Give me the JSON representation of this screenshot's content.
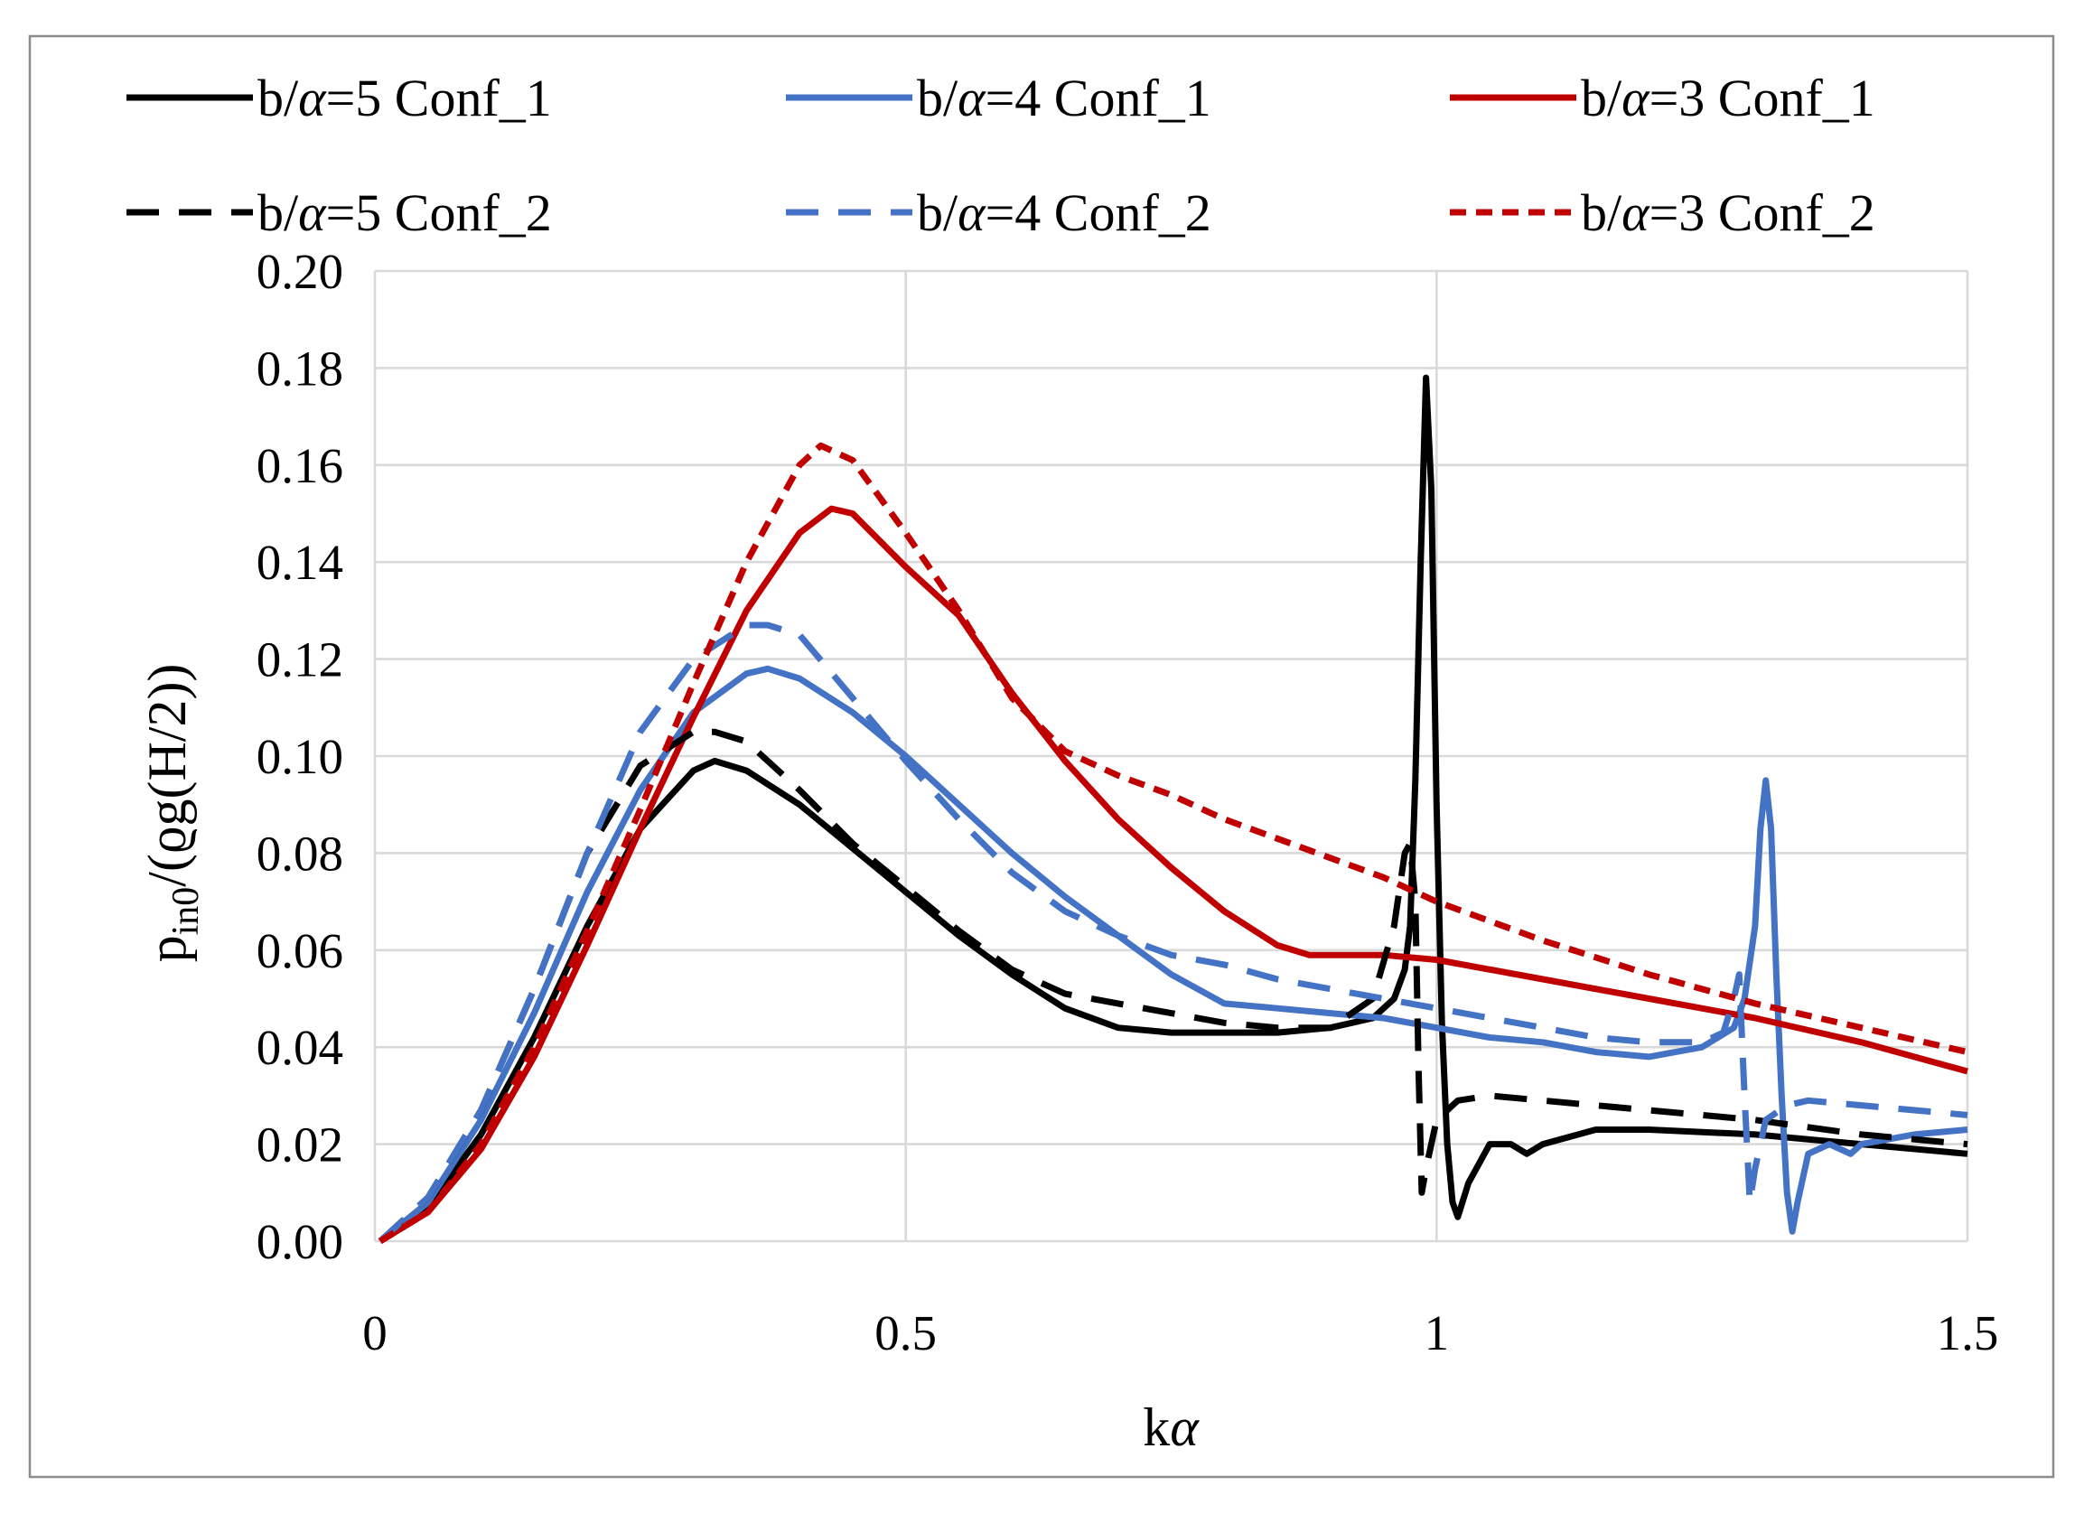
{
  "chart_data": {
    "type": "line",
    "title": "",
    "xlabel": "kα",
    "ylabel": "p_in0/(ϱg(H/2))",
    "ylabel_parts": {
      "base": "p",
      "sub": "in0",
      "rest": "/(ϱg(H/2))"
    },
    "xlim": [
      0,
      1.5
    ],
    "ylim": [
      0,
      0.2
    ],
    "x_ticks": [
      0,
      0.5,
      1,
      1.5
    ],
    "x_tick_labels": [
      "0",
      "0.5",
      "1",
      "1.5"
    ],
    "y_ticks": [
      0,
      0.02,
      0.04,
      0.06,
      0.08,
      0.1,
      0.12,
      0.14,
      0.16,
      0.18,
      0.2
    ],
    "y_tick_labels": [
      "0.00",
      "0.02",
      "0.04",
      "0.06",
      "0.08",
      "0.10",
      "0.12",
      "0.14",
      "0.16",
      "0.18",
      "0.20"
    ],
    "grid": true,
    "legend_position": "top",
    "series": [
      {
        "name": "b/α=5 Conf_1",
        "label_main": "b/",
        "label_greek": "α",
        "label_rest": "=5 Conf_1",
        "color": "#000000",
        "dash": "solid",
        "x": [
          0.005,
          0.05,
          0.1,
          0.15,
          0.2,
          0.25,
          0.3,
          0.32,
          0.35,
          0.4,
          0.45,
          0.5,
          0.55,
          0.6,
          0.65,
          0.7,
          0.75,
          0.8,
          0.85,
          0.9,
          0.94,
          0.96,
          0.97,
          0.975,
          0.98,
          0.985,
          0.99,
          0.995,
          1.0,
          1.005,
          1.01,
          1.015,
          1.02,
          1.03,
          1.05,
          1.07,
          1.085,
          1.1,
          1.15,
          1.2,
          1.3,
          1.4,
          1.5
        ],
        "y": [
          0.0,
          0.007,
          0.022,
          0.042,
          0.065,
          0.085,
          0.097,
          0.099,
          0.097,
          0.09,
          0.081,
          0.072,
          0.063,
          0.055,
          0.048,
          0.044,
          0.043,
          0.043,
          0.043,
          0.044,
          0.046,
          0.05,
          0.056,
          0.065,
          0.095,
          0.14,
          0.178,
          0.155,
          0.09,
          0.045,
          0.02,
          0.008,
          0.005,
          0.012,
          0.02,
          0.02,
          0.018,
          0.02,
          0.023,
          0.023,
          0.022,
          0.02,
          0.018
        ]
      },
      {
        "name": "b/α=4 Conf_1",
        "label_main": "b/",
        "label_greek": "α",
        "label_rest": "=4 Conf_1",
        "color": "#4472c4",
        "dash": "solid",
        "x": [
          0.005,
          0.05,
          0.1,
          0.15,
          0.2,
          0.25,
          0.3,
          0.35,
          0.37,
          0.4,
          0.45,
          0.5,
          0.55,
          0.6,
          0.65,
          0.7,
          0.75,
          0.8,
          0.85,
          0.9,
          0.95,
          1.0,
          1.05,
          1.1,
          1.15,
          1.2,
          1.25,
          1.28,
          1.29,
          1.3,
          1.305,
          1.31,
          1.315,
          1.32,
          1.325,
          1.33,
          1.335,
          1.34,
          1.35,
          1.37,
          1.39,
          1.4,
          1.45,
          1.5
        ],
        "y": [
          0.0,
          0.008,
          0.025,
          0.047,
          0.072,
          0.093,
          0.109,
          0.117,
          0.118,
          0.116,
          0.109,
          0.1,
          0.09,
          0.08,
          0.071,
          0.063,
          0.055,
          0.049,
          0.048,
          0.047,
          0.046,
          0.044,
          0.042,
          0.041,
          0.039,
          0.038,
          0.04,
          0.044,
          0.05,
          0.065,
          0.085,
          0.095,
          0.085,
          0.055,
          0.03,
          0.01,
          0.002,
          0.008,
          0.018,
          0.02,
          0.018,
          0.02,
          0.022,
          0.023
        ]
      },
      {
        "name": "b/α=3 Conf_1",
        "label_main": "b/",
        "label_greek": "α",
        "label_rest": "=3 Conf_1",
        "color": "#c00000",
        "dash": "solid",
        "x": [
          0.005,
          0.05,
          0.1,
          0.15,
          0.2,
          0.25,
          0.3,
          0.35,
          0.4,
          0.43,
          0.45,
          0.5,
          0.55,
          0.6,
          0.65,
          0.7,
          0.75,
          0.8,
          0.85,
          0.88,
          0.9,
          0.95,
          1.0,
          1.1,
          1.2,
          1.3,
          1.4,
          1.5
        ],
        "y": [
          0.0,
          0.006,
          0.019,
          0.038,
          0.061,
          0.085,
          0.108,
          0.13,
          0.146,
          0.151,
          0.15,
          0.139,
          0.129,
          0.113,
          0.099,
          0.087,
          0.077,
          0.068,
          0.061,
          0.059,
          0.059,
          0.059,
          0.058,
          0.054,
          0.05,
          0.046,
          0.041,
          0.035
        ]
      },
      {
        "name": "b/α=5 Conf_2",
        "label_main": "b/",
        "label_greek": "α",
        "label_rest": "=5 Conf_2",
        "color": "#000000",
        "dash": "dash",
        "x": [
          0.005,
          0.05,
          0.1,
          0.15,
          0.2,
          0.25,
          0.3,
          0.32,
          0.35,
          0.4,
          0.45,
          0.5,
          0.55,
          0.6,
          0.65,
          0.7,
          0.75,
          0.8,
          0.85,
          0.9,
          0.94,
          0.96,
          0.97,
          0.975,
          0.98,
          0.983,
          0.986,
          0.99,
          1.0,
          1.02,
          1.05,
          1.1,
          1.2,
          1.3,
          1.4,
          1.5
        ],
        "y": [
          0.0,
          0.009,
          0.027,
          0.052,
          0.08,
          0.098,
          0.105,
          0.105,
          0.103,
          0.093,
          0.082,
          0.073,
          0.064,
          0.056,
          0.051,
          0.049,
          0.047,
          0.045,
          0.044,
          0.044,
          0.05,
          0.065,
          0.08,
          0.082,
          0.07,
          0.035,
          0.01,
          0.015,
          0.025,
          0.029,
          0.03,
          0.029,
          0.027,
          0.025,
          0.022,
          0.02
        ]
      },
      {
        "name": "b/α=4 Conf_2",
        "label_main": "b/",
        "label_greek": "α",
        "label_rest": "=4 Conf_2",
        "color": "#4472c4",
        "dash": "dash",
        "x": [
          0.005,
          0.05,
          0.1,
          0.15,
          0.2,
          0.25,
          0.3,
          0.35,
          0.37,
          0.4,
          0.45,
          0.5,
          0.55,
          0.6,
          0.65,
          0.7,
          0.75,
          0.8,
          0.85,
          0.9,
          0.95,
          1.0,
          1.05,
          1.1,
          1.15,
          1.2,
          1.25,
          1.27,
          1.28,
          1.285,
          1.29,
          1.295,
          1.3,
          1.31,
          1.33,
          1.35,
          1.4,
          1.45,
          1.5
        ],
        "y": [
          0.0,
          0.009,
          0.027,
          0.052,
          0.08,
          0.105,
          0.12,
          0.127,
          0.127,
          0.125,
          0.112,
          0.099,
          0.087,
          0.076,
          0.068,
          0.063,
          0.059,
          0.057,
          0.054,
          0.052,
          0.05,
          0.048,
          0.046,
          0.044,
          0.042,
          0.041,
          0.041,
          0.043,
          0.05,
          0.055,
          0.03,
          0.008,
          0.015,
          0.025,
          0.028,
          0.029,
          0.028,
          0.027,
          0.026
        ]
      },
      {
        "name": "b/α=3 Conf_2",
        "label_main": "b/",
        "label_greek": "α",
        "label_rest": "=3 Conf_2",
        "color": "#c00000",
        "dash": "dot",
        "x": [
          0.005,
          0.05,
          0.1,
          0.15,
          0.2,
          0.25,
          0.3,
          0.35,
          0.4,
          0.42,
          0.45,
          0.5,
          0.55,
          0.6,
          0.65,
          0.7,
          0.75,
          0.8,
          0.85,
          0.9,
          0.95,
          1.0,
          1.05,
          1.1,
          1.2,
          1.3,
          1.4,
          1.5
        ],
        "y": [
          0.0,
          0.006,
          0.02,
          0.04,
          0.064,
          0.089,
          0.115,
          0.14,
          0.16,
          0.164,
          0.161,
          0.146,
          0.13,
          0.112,
          0.101,
          0.096,
          0.092,
          0.087,
          0.083,
          0.079,
          0.075,
          0.07,
          0.066,
          0.062,
          0.055,
          0.049,
          0.044,
          0.039
        ]
      }
    ]
  }
}
